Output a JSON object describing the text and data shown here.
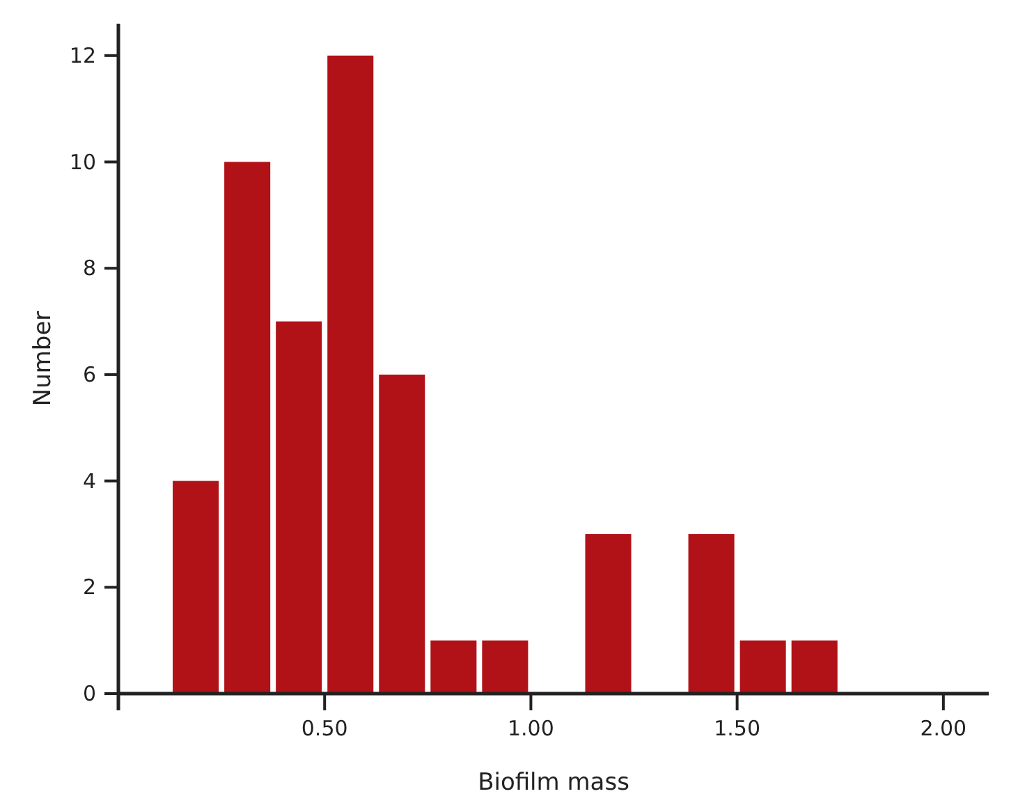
{
  "chart_data": {
    "type": "histogram",
    "xlabel": "Biofilm mass",
    "ylabel": "Number",
    "color": "#b01218",
    "bins": [
      0.125,
      0.25,
      0.375,
      0.5,
      0.625,
      0.75,
      0.875,
      1.0,
      1.125,
      1.25,
      1.375,
      1.5,
      1.625,
      1.75
    ],
    "values": [
      4,
      10,
      7,
      12,
      6,
      1,
      1,
      0,
      3,
      0,
      3,
      1,
      1
    ],
    "xlim": [
      0,
      2.11
    ],
    "xticks": [
      {
        "value": 0.5,
        "label": "0.50"
      },
      {
        "value": 1,
        "label": "1.00"
      },
      {
        "value": 1.5,
        "label": "1.50"
      },
      {
        "value": 2,
        "label": "2.00"
      }
    ],
    "ylim": [
      0,
      12.6
    ],
    "yticks": [
      0,
      2,
      4,
      6,
      8,
      10,
      12
    ],
    "grid": false
  }
}
